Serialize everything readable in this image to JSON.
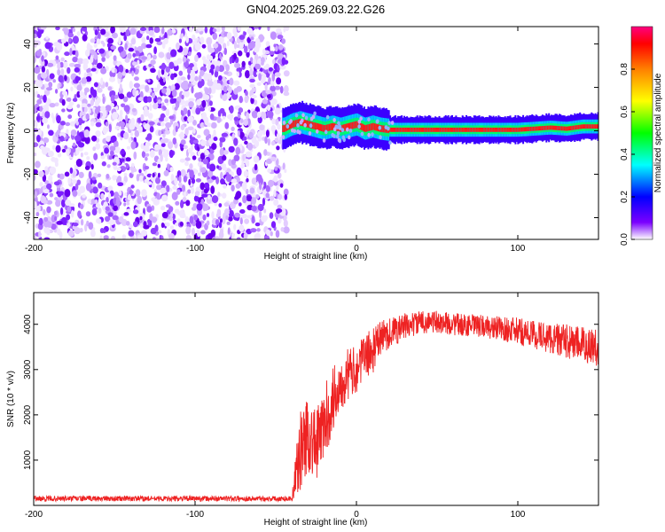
{
  "title": "GN04.2025.269.03.22.G26",
  "chart_data": [
    {
      "type": "heatmap",
      "xlabel": "Height of straight line (km)",
      "ylabel": "Frequency (Hz)",
      "xlim": [
        -200,
        150
      ],
      "ylim": [
        -50,
        48
      ],
      "x_ticks": [
        -200,
        -100,
        0,
        100
      ],
      "y_ticks": [
        40,
        20,
        0,
        -20,
        -40
      ],
      "noise_region_x": [
        -200,
        -43
      ],
      "signal_trace": {
        "x": [
          -45,
          -40,
          -35,
          -30,
          -25,
          -20,
          -15,
          -10,
          -5,
          0,
          5,
          10,
          15,
          20,
          40,
          60,
          80,
          100,
          110,
          120,
          130,
          140,
          150
        ],
        "frequency": [
          1,
          3,
          4,
          3,
          2,
          1,
          2,
          1,
          2,
          3,
          1,
          2,
          1,
          0.5,
          0.5,
          0.5,
          0.5,
          0.5,
          1,
          1.5,
          1,
          2,
          2
        ]
      },
      "colorbar": {
        "label": "Normalized spectral amplitude",
        "range": [
          0,
          1
        ],
        "ticks": [
          "0.0",
          "0.2",
          "0.4",
          "0.6",
          "0.8"
        ],
        "colors": [
          "#ffffff",
          "#7b00ff",
          "#0000ff",
          "#00ffff",
          "#00ff00",
          "#ffff00",
          "#ff8000",
          "#ff0000",
          "#ff0080"
        ]
      }
    },
    {
      "type": "line",
      "xlabel": "Height of straight line (km)",
      "ylabel": "SNR (10 * v/v)",
      "xlim": [
        -200,
        150
      ],
      "ylim": [
        0,
        4700
      ],
      "x_ticks": [
        -200,
        -100,
        0,
        100
      ],
      "y_ticks": [
        1000,
        2000,
        3000,
        4000
      ],
      "color": "#ff0000",
      "envelope": {
        "x": [
          -200,
          -150,
          -100,
          -50,
          -40,
          -35,
          -30,
          -25,
          -20,
          -15,
          -10,
          -5,
          0,
          5,
          10,
          15,
          20,
          30,
          40,
          50,
          60,
          80,
          100,
          120,
          140,
          150
        ],
        "mean": [
          150,
          150,
          150,
          150,
          150,
          1200,
          1600,
          1300,
          1800,
          2300,
          2700,
          2900,
          3000,
          3300,
          3400,
          3700,
          3800,
          3950,
          4050,
          4050,
          4000,
          3950,
          3850,
          3700,
          3550,
          3500
        ],
        "spread": [
          60,
          60,
          60,
          60,
          60,
          900,
          900,
          800,
          800,
          800,
          600,
          600,
          500,
          500,
          500,
          400,
          350,
          300,
          250,
          250,
          250,
          250,
          300,
          350,
          400,
          450
        ]
      }
    }
  ]
}
